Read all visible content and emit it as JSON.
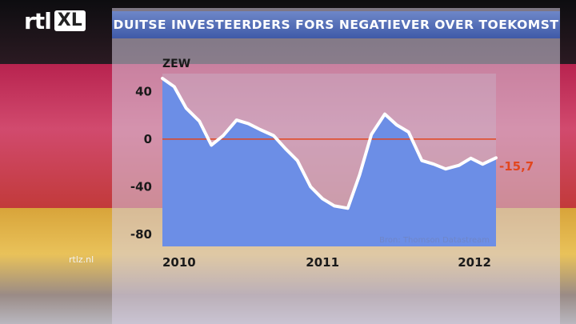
{
  "header": {
    "logo_main": "rtl",
    "logo_badge": "XL",
    "title": "DUITSE INVESTEERDERS FORS NEGATIEVER OVER TOEKOMST"
  },
  "footer": {
    "site": "rtlz.nl"
  },
  "colors": {
    "title_bar": "#4a64b0",
    "area_fill": "#6c8ee6",
    "line": "#ffffff",
    "zero_line": "#e2461e",
    "last_value_label": "#e2461e"
  },
  "chart_data": {
    "type": "area",
    "ylabel": "ZEW",
    "ylim": [
      -90,
      55
    ],
    "yticks": [
      40,
      0,
      -40,
      -80
    ],
    "ytick_labels": [
      "40",
      "0",
      "-40",
      "-80"
    ],
    "xlim": [
      2009.92,
      2012.17
    ],
    "xticks": [
      2010,
      2011,
      2012
    ],
    "xtick_labels": [
      "2010",
      "2011",
      "2012"
    ],
    "zero_line": 0,
    "source": "Bron: Thomson Datastream",
    "last_value_label": "-15,7",
    "series": [
      {
        "x": [
          2009.92,
          2010.0,
          2010.08,
          2010.17,
          2010.25,
          2010.33,
          2010.42,
          2010.5,
          2010.58,
          2010.67,
          2010.75,
          2010.83,
          2010.92,
          2011.0,
          2011.08,
          2011.17,
          2011.25,
          2011.33,
          2011.42,
          2011.5,
          2011.58,
          2011.67,
          2011.75,
          2011.83,
          2011.92,
          2012.0,
          2012.08,
          2012.17
        ],
        "y": [
          51,
          44,
          26,
          15,
          -5,
          3,
          16,
          13,
          8,
          3,
          -8,
          -18,
          -40,
          -50,
          -56,
          -58,
          -30,
          4,
          21,
          12,
          6,
          -18,
          -21,
          -25,
          -22,
          -16,
          -21,
          -15.7
        ]
      }
    ]
  }
}
